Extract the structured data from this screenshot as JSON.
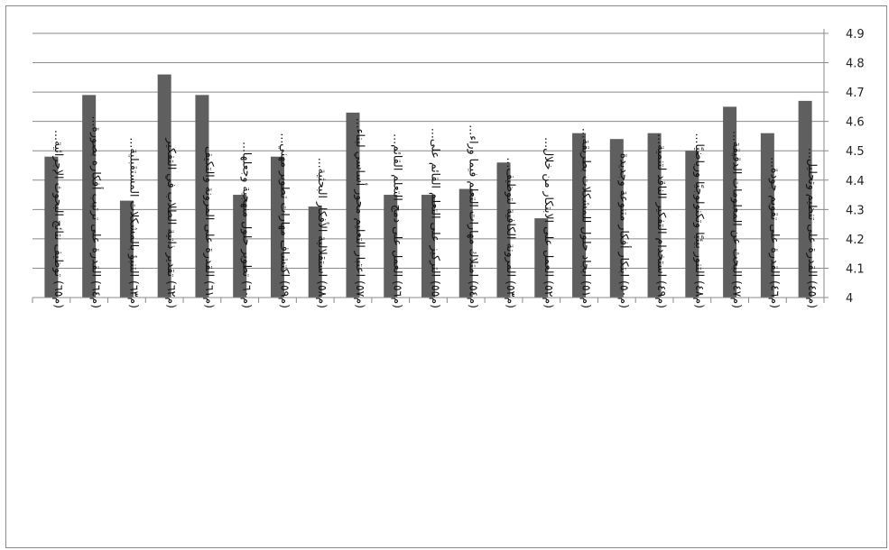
{
  "chart_data": {
    "type": "bar",
    "categories": [
      "(م٦٥) توظيف نتائج البحوث الإجرائية...",
      "(م٦٤) القدرة على ترتيب أفكاره بصورة...",
      "(م٦٣) التنبؤ بالمشكلات المستقبلية...",
      "(م٦٢) تقدير ذاتية الطلاب في التفكير",
      "(م٦١) القدرة على المرونة والتكيف",
      "(م٦٠) تطوير حلول منهجية وجعلها...",
      "(م٥٩) اكتشاف مهارات تطوير مهني...",
      "(م٥٨) استقلالية الأفكار البحثية...",
      "(م٥٧) اعتبار التعليم محور أساسي لبناء...",
      "(م٥٦) العمل على دمج التعلم القائم...",
      "(م٥٥) التركيز على التعلم القائم على...",
      "(م٥٤) امتلاك مهارات التعلم فيما وراء...",
      "(م٥٣) المرونة الكافية لتوظيف...",
      "(م٥٢) العمل على الابتكار من خلال...",
      "(م٥١) ايجاد حلول للمشكلات بطريقة...",
      "(م٥٠) ابتكار أفكار متنوعة وجديدة",
      "(م٤٩) استخدام التفكير الناقد لتنمية...",
      "(م٤٨) التنور بيئيًا وتكنولوجيًا ورياضيًا...",
      "(م٤٧) البحث عن المعلومات الدقيقة...",
      "(م٤٦) القدرة على تقويم جودة...",
      "(م٤٥) القدرة على تنظيم وتحليل..."
    ],
    "values": [
      4.48,
      4.69,
      4.33,
      4.76,
      4.69,
      4.35,
      4.48,
      4.31,
      4.63,
      4.35,
      4.35,
      4.37,
      4.46,
      4.27,
      4.56,
      4.54,
      4.56,
      4.5,
      4.65,
      4.56,
      4.67
    ],
    "yticks": [
      "4",
      "4.1",
      "4.2",
      "4.3",
      "4.4",
      "4.5",
      "4.6",
      "4.7",
      "4.8",
      "4.9"
    ],
    "ylim": [
      4,
      4.9
    ],
    "y_axis_side": "right",
    "grid": true,
    "bar_color": "#5f5f5f"
  }
}
